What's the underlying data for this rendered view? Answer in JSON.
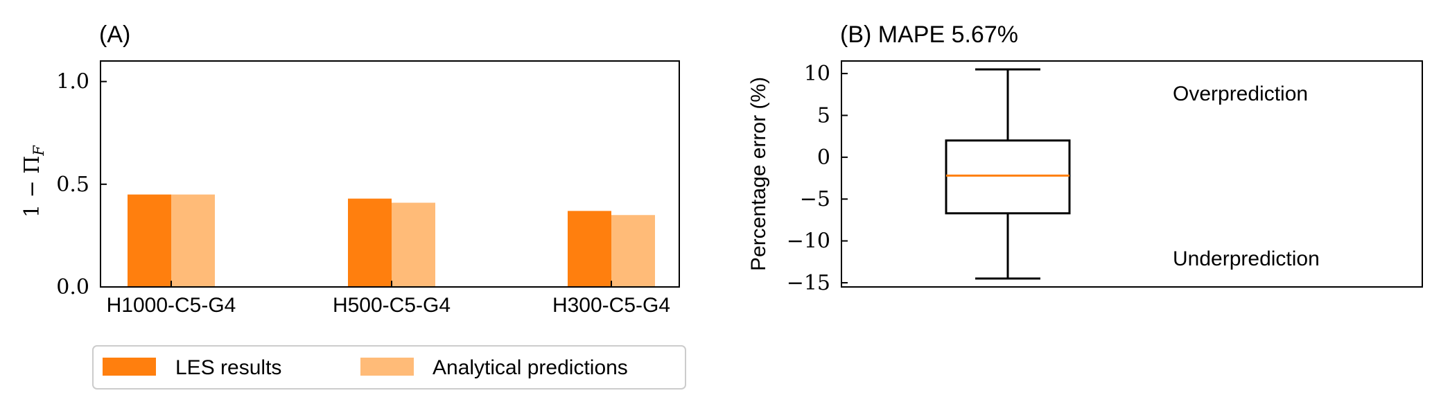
{
  "chart_data": [
    {
      "panel": "A",
      "type": "bar",
      "title": "(A)",
      "ylabel": "1 − Π",
      "ylabel_sub": "F",
      "xlabel": "",
      "ylim": [
        0,
        1.1
      ],
      "yticks": [
        "0.0",
        "0.5",
        "1.0"
      ],
      "categories": [
        "H1000-C5-G4",
        "H500-C5-G4",
        "H300-C5-G4"
      ],
      "series": [
        {
          "name": "LES results",
          "color": "#ff7f0e",
          "values": [
            0.45,
            0.43,
            0.37
          ]
        },
        {
          "name": "Analytical predictions",
          "color": "#ffbb78",
          "values": [
            0.45,
            0.41,
            0.35
          ]
        }
      ],
      "legend_position": "bottom-left",
      "grid": false
    },
    {
      "panel": "B",
      "type": "box",
      "title": "(B) MAPE 5.67%",
      "ylabel": "Percentage error (%)",
      "ylim": [
        -15.5,
        11.5
      ],
      "yticks": [
        "10",
        "5",
        "0",
        "−5",
        "−10",
        "−15"
      ],
      "ytick_values": [
        10,
        5,
        0,
        -5,
        -10,
        -15
      ],
      "box": {
        "whisker_low": -14.5,
        "q1": -6.7,
        "median": -2.2,
        "q3": 2.0,
        "whisker_high": 10.5
      },
      "median_color": "#ff7f0e",
      "annotations": [
        "Overprediction",
        "Underprediction"
      ],
      "grid": false
    }
  ]
}
